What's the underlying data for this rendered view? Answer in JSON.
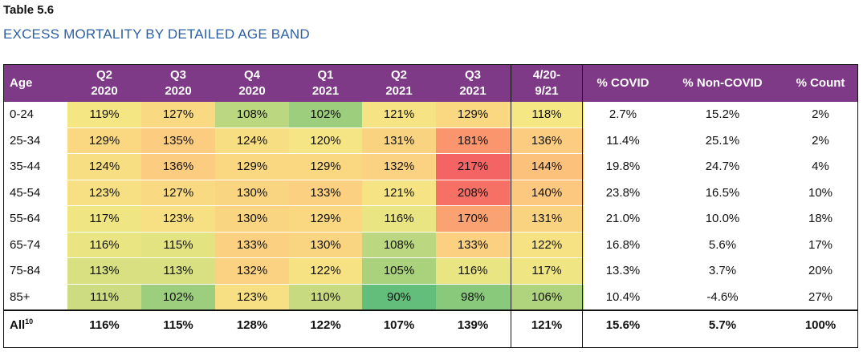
{
  "table_number": "Table 5.6",
  "table_title": "EXCESS MORTALITY BY DETAILED AGE BAND",
  "colors": {
    "header_bg": "#7e3a86",
    "header_text": "#ffffff",
    "title": "#2b5fa6"
  },
  "headers": [
    {
      "l1": "Age",
      "l2": ""
    },
    {
      "l1": "Q2",
      "l2": "2020"
    },
    {
      "l1": "Q3",
      "l2": "2020"
    },
    {
      "l1": "Q4",
      "l2": "2020"
    },
    {
      "l1": "Q1",
      "l2": "2021"
    },
    {
      "l1": "Q2",
      "l2": "2021"
    },
    {
      "l1": "Q3",
      "l2": "2021"
    },
    {
      "l1": "4/20-",
      "l2": "9/21"
    },
    {
      "l1": "% COVID",
      "l2": ""
    },
    {
      "l1": "% Non-COVID",
      "l2": ""
    },
    {
      "l1": "% Count",
      "l2": ""
    }
  ],
  "rows": [
    {
      "age": "0-24",
      "vals": [
        "119%",
        "127%",
        "108%",
        "102%",
        "121%",
        "129%",
        "118%"
      ],
      "covid": "2.7%",
      "noncovid": "15.2%",
      "count": "2%"
    },
    {
      "age": "25-34",
      "vals": [
        "129%",
        "135%",
        "124%",
        "120%",
        "131%",
        "181%",
        "136%"
      ],
      "covid": "11.4%",
      "noncovid": "25.1%",
      "count": "2%"
    },
    {
      "age": "35-44",
      "vals": [
        "124%",
        "136%",
        "129%",
        "129%",
        "132%",
        "217%",
        "144%"
      ],
      "covid": "19.8%",
      "noncovid": "24.7%",
      "count": "4%"
    },
    {
      "age": "45-54",
      "vals": [
        "123%",
        "127%",
        "130%",
        "133%",
        "121%",
        "208%",
        "140%"
      ],
      "covid": "23.8%",
      "noncovid": "16.5%",
      "count": "10%"
    },
    {
      "age": "55-64",
      "vals": [
        "117%",
        "123%",
        "130%",
        "129%",
        "116%",
        "170%",
        "131%"
      ],
      "covid": "21.0%",
      "noncovid": "10.0%",
      "count": "18%"
    },
    {
      "age": "65-74",
      "vals": [
        "116%",
        "115%",
        "133%",
        "130%",
        "108%",
        "133%",
        "122%"
      ],
      "covid": "16.8%",
      "noncovid": "5.6%",
      "count": "17%"
    },
    {
      "age": "75-84",
      "vals": [
        "113%",
        "113%",
        "132%",
        "122%",
        "105%",
        "116%",
        "117%"
      ],
      "covid": "13.3%",
      "noncovid": "3.7%",
      "count": "20%"
    },
    {
      "age": "85+",
      "vals": [
        "111%",
        "102%",
        "123%",
        "110%",
        "90%",
        "98%",
        "106%"
      ],
      "covid": "10.4%",
      "noncovid": "-4.6%",
      "count": "27%"
    }
  ],
  "total": {
    "age": "All",
    "footnote": "10",
    "vals": [
      "116%",
      "115%",
      "128%",
      "122%",
      "107%",
      "139%",
      "121%"
    ],
    "covid": "15.6%",
    "noncovid": "5.7%",
    "count": "100%"
  }
}
